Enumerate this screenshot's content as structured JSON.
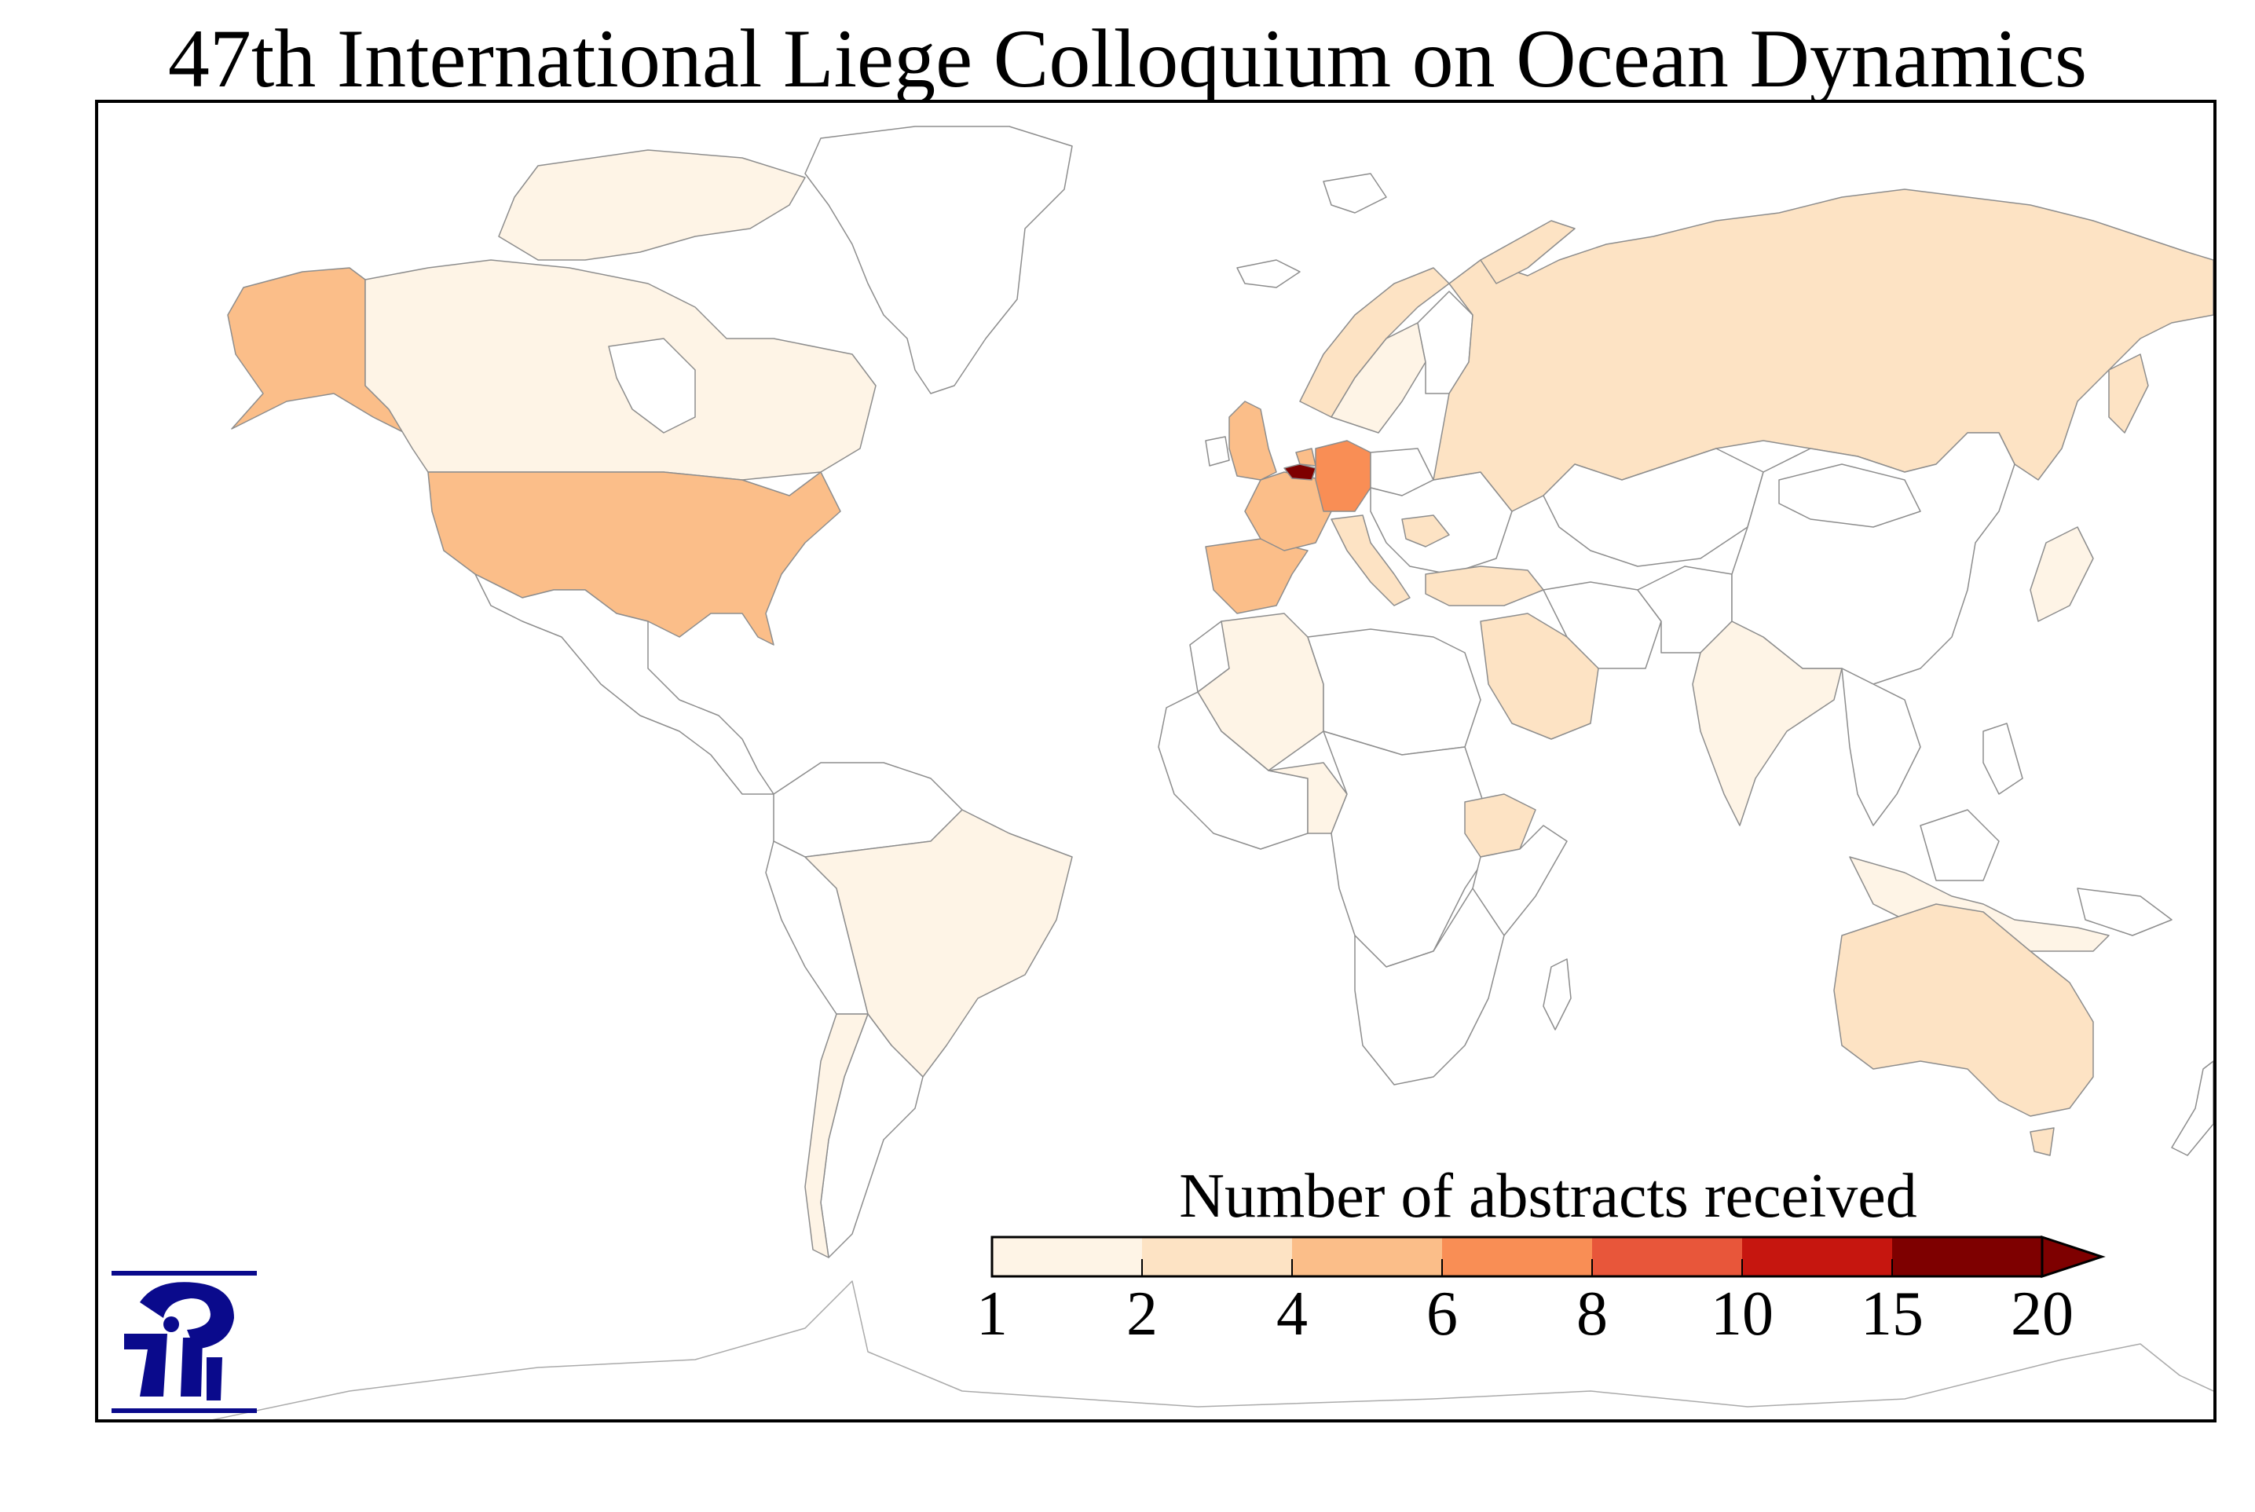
{
  "title": "47th International Liege Colloquium on Ocean Dynamics",
  "colors": {
    "bin_1_2": "#fef4e6",
    "bin_2_4": "#fde3c4",
    "bin_4_6": "#fbbe89",
    "bin_6_8": "#f98e55",
    "bin_8_10": "#e8563a",
    "bin_10_15": "#c6160f",
    "bin_15_20": "#7e0000",
    "border": "#aaaaaa",
    "logo": "#0a0a8c"
  },
  "legend": {
    "title": "Number of abstracts received",
    "ticks": [
      "1",
      "2",
      "4",
      "6",
      "8",
      "10",
      "15",
      "20"
    ],
    "extend": "max"
  },
  "chart_data": {
    "type": "choropleth",
    "title": "47th International Liege Colloquium on Ocean Dynamics",
    "legend_title": "Number of abstracts received",
    "bins": [
      [
        1,
        2
      ],
      [
        2,
        4
      ],
      [
        4,
        6
      ],
      [
        6,
        8
      ],
      [
        8,
        10
      ],
      [
        10,
        15
      ],
      [
        15,
        20
      ]
    ],
    "countries": [
      {
        "name": "Belgium",
        "bin": "15-20"
      },
      {
        "name": "Germany",
        "bin": "6-8"
      },
      {
        "name": "United States",
        "bin": "4-6"
      },
      {
        "name": "France",
        "bin": "4-6"
      },
      {
        "name": "United Kingdom",
        "bin": "4-6"
      },
      {
        "name": "Spain",
        "bin": "4-6"
      },
      {
        "name": "Netherlands",
        "bin": "4-6"
      },
      {
        "name": "Russia",
        "bin": "2-4"
      },
      {
        "name": "Australia",
        "bin": "2-4"
      },
      {
        "name": "Norway",
        "bin": "2-4"
      },
      {
        "name": "Italy",
        "bin": "2-4"
      },
      {
        "name": "Turkey",
        "bin": "2-4"
      },
      {
        "name": "Saudi Arabia",
        "bin": "2-4"
      },
      {
        "name": "Ethiopia",
        "bin": "2-4"
      },
      {
        "name": "Canada",
        "bin": "1-2"
      },
      {
        "name": "Brazil",
        "bin": "1-2"
      },
      {
        "name": "Chile",
        "bin": "1-2"
      },
      {
        "name": "India",
        "bin": "1-2"
      },
      {
        "name": "Algeria",
        "bin": "1-2"
      },
      {
        "name": "Nigeria",
        "bin": "1-2"
      },
      {
        "name": "Greenland",
        "bin": "1-2"
      },
      {
        "name": "Sweden",
        "bin": "1-2"
      },
      {
        "name": "Japan",
        "bin": "1-2"
      },
      {
        "name": "China",
        "bin": "1-2"
      },
      {
        "name": "Indonesia",
        "bin": "1-2"
      }
    ]
  }
}
